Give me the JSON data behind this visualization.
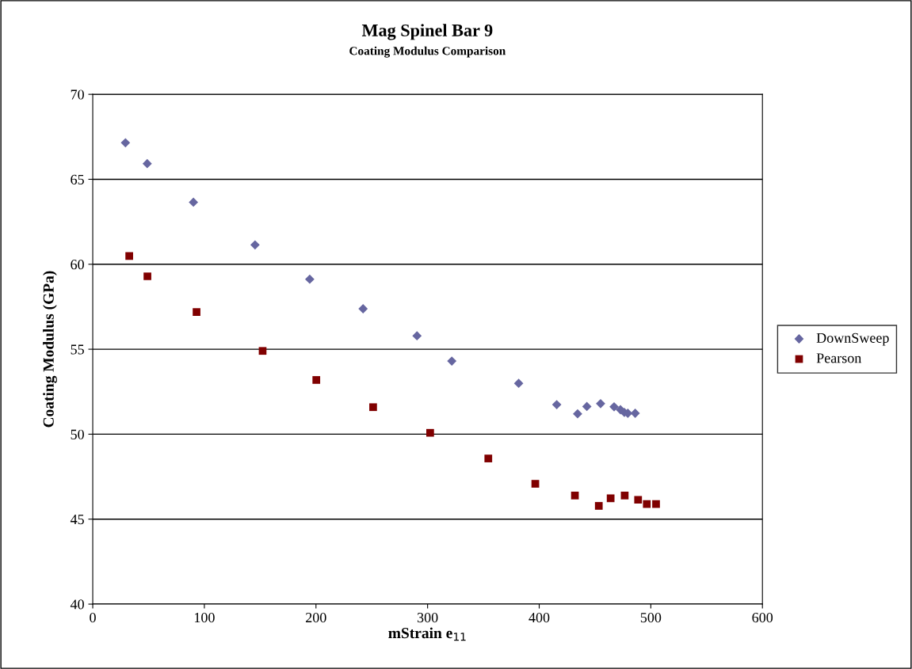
{
  "chart_data": {
    "type": "scatter",
    "title": "Mag Spinel Bar 9",
    "subtitle": "Coating Modulus Comparison",
    "xlabel": "mStrain e$_{11}$",
    "ylabel": "Coating Modulus (GPa)",
    "xlim": [
      0,
      600
    ],
    "xticks": [
      0,
      100,
      200,
      300,
      400,
      500,
      600
    ],
    "ylim": [
      40,
      70
    ],
    "yticks": [
      40,
      45,
      50,
      55,
      60,
      65,
      70
    ],
    "grid": "y",
    "legend": "right",
    "series": [
      {
        "name": "DownSweep",
        "color": "#6666a0",
        "marker": "diamond",
        "x": [
          29.3,
          48.8,
          90.2,
          145.4,
          194.4,
          242.2,
          290.5,
          321.7,
          381.6,
          415.7,
          434.4,
          442.7,
          455.0,
          467.1,
          472.8,
          476.3,
          479.4,
          486.0
        ],
        "values": [
          67.15,
          65.92,
          63.65,
          61.14,
          59.12,
          57.38,
          55.79,
          54.3,
          52.99,
          51.74,
          51.2,
          51.63,
          51.8,
          51.61,
          51.44,
          51.28,
          51.23,
          51.23
        ]
      },
      {
        "name": "Pearson",
        "color": "#800000",
        "marker": "square",
        "x": [
          32.7,
          49.0,
          93.0,
          152.2,
          200.3,
          251.2,
          302.3,
          354.4,
          396.5,
          432.0,
          453.4,
          464.0,
          476.6,
          488.6,
          496.4,
          501.2,
          504.7
        ],
        "values": [
          60.48,
          59.29,
          57.19,
          54.9,
          53.19,
          51.59,
          50.08,
          48.57,
          47.08,
          46.39,
          45.78,
          46.23,
          46.39,
          46.14,
          45.89,
          null,
          45.89
        ]
      }
    ]
  }
}
